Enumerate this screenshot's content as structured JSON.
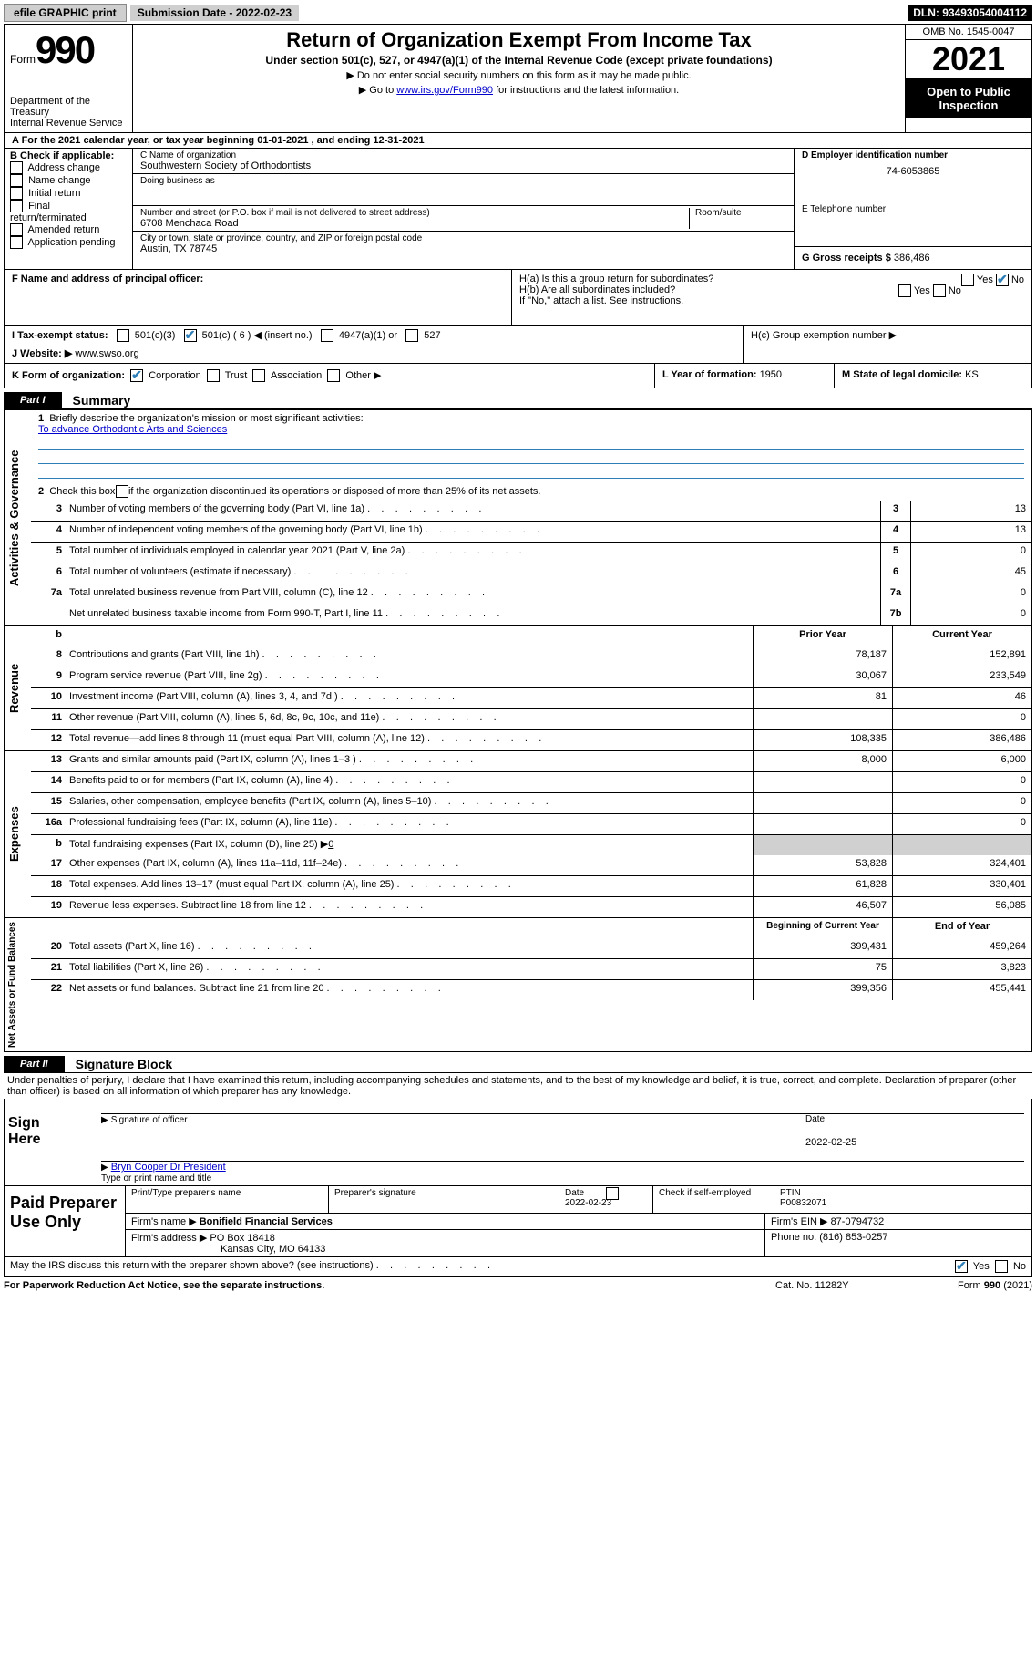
{
  "topBar": {
    "efile": "efile GRAPHIC print",
    "subLabel": "Submission Date - ",
    "subDate": "2022-02-23",
    "dln": "DLN: 93493054004112"
  },
  "header": {
    "formPrefix": "Form",
    "formNumber": "990",
    "dept": "Department of the Treasury",
    "irs": "Internal Revenue Service",
    "title": "Return of Organization Exempt From Income Tax",
    "sub": "Under section 501(c), 527, or 4947(a)(1) of the Internal Revenue Code (except private foundations)",
    "note1": "▶ Do not enter social security numbers on this form as it may be made public.",
    "note2_pre": "▶ Go to ",
    "note2_link": "www.irs.gov/Form990",
    "note2_post": " for instructions and the latest information.",
    "omb": "OMB No. 1545-0047",
    "year": "2021",
    "open": "Open to Public Inspection"
  },
  "lineA": {
    "text_a": "A For the 2021 calendar year, or tax year beginning ",
    "begin": "01-01-2021",
    "mid": "   , and ending ",
    "end": "12-31-2021"
  },
  "boxB": {
    "title": "B Check if applicable:",
    "items": [
      "Address change",
      "Name change",
      "Initial return",
      "Final return/terminated",
      "Amended return",
      "Application pending"
    ]
  },
  "boxC": {
    "labelName": "C Name of organization",
    "name": "Southwestern Society of Orthodontists",
    "dba": "Doing business as",
    "addrLabel": "Number and street (or P.O. box if mail is not delivered to street address)",
    "room": "Room/suite",
    "street": "6708 Menchaca Road",
    "cityLabel": "City or town, state or province, country, and ZIP or foreign postal code",
    "city": "Austin, TX  78745"
  },
  "boxD": {
    "label": "D Employer identification number",
    "value": "74-6053865"
  },
  "boxE": {
    "label": "E Telephone number",
    "value": ""
  },
  "boxG": {
    "label": "G Gross receipts $ ",
    "value": "386,486"
  },
  "boxF": "F  Name and address of principal officer:",
  "boxH": {
    "ha": "H(a)  Is this a group return for subordinates?",
    "haYes": "Yes",
    "haNo": "No",
    "hb": "H(b)  Are all subordinates included?",
    "hbNote": "If \"No,\" attach a list. See instructions.",
    "hc": "H(c)  Group exemption number ▶"
  },
  "rowI": {
    "label": "I   Tax-exempt status:",
    "opts": [
      "501(c)(3)",
      "501(c) ( 6 ) ◀ (insert no.)",
      "4947(a)(1) or",
      "527"
    ]
  },
  "rowJ": {
    "label": "J   Website: ▶ ",
    "value": "www.swso.org"
  },
  "rowK": {
    "label": "K Form of organization:",
    "opts": [
      "Corporation",
      "Trust",
      "Association",
      "Other ▶"
    ],
    "l_label": "L Year of formation: ",
    "l_value": "1950",
    "m_label": "M State of legal domicile: ",
    "m_value": "KS"
  },
  "part1": {
    "label": "Part I",
    "title": "Summary",
    "side1": "Activities & Governance",
    "q1_label": "1",
    "q1_text": "Briefly describe the organization's mission or most significant activities:",
    "q1_value": "To advance Orthodontic Arts and Sciences",
    "q2": "Check this box ▶        if the organization discontinued its operations or disposed of more than 25% of its net assets.",
    "rows_small": [
      {
        "n": "3",
        "t": "Number of voting members of the governing body (Part VI, line 1a)",
        "lbl": "3",
        "v": "13"
      },
      {
        "n": "4",
        "t": "Number of independent voting members of the governing body (Part VI, line 1b)",
        "lbl": "4",
        "v": "13"
      },
      {
        "n": "5",
        "t": "Total number of individuals employed in calendar year 2021 (Part V, line 2a)",
        "lbl": "5",
        "v": "0"
      },
      {
        "n": "6",
        "t": "Total number of volunteers (estimate if necessary)",
        "lbl": "6",
        "v": "45"
      },
      {
        "n": "7a",
        "t": "Total unrelated business revenue from Part VIII, column (C), line 12",
        "lbl": "7a",
        "v": "0"
      },
      {
        "n": "",
        "t": "Net unrelated business taxable income from Form 990-T, Part I, line 11",
        "lbl": "7b",
        "v": "0"
      }
    ],
    "side2": "Revenue",
    "col_prior": "Prior Year",
    "col_curr": "Current Year",
    "rev_rows": [
      {
        "n": "8",
        "t": "Contributions and grants (Part VIII, line 1h)",
        "p": "78,187",
        "c": "152,891"
      },
      {
        "n": "9",
        "t": "Program service revenue (Part VIII, line 2g)",
        "p": "30,067",
        "c": "233,549"
      },
      {
        "n": "10",
        "t": "Investment income (Part VIII, column (A), lines 3, 4, and 7d )",
        "p": "81",
        "c": "46"
      },
      {
        "n": "11",
        "t": "Other revenue (Part VIII, column (A), lines 5, 6d, 8c, 9c, 10c, and 11e)",
        "p": "",
        "c": "0"
      },
      {
        "n": "12",
        "t": "Total revenue—add lines 8 through 11 (must equal Part VIII, column (A), line 12)",
        "p": "108,335",
        "c": "386,486"
      }
    ],
    "side3": "Expenses",
    "exp_rows": [
      {
        "n": "13",
        "t": "Grants and similar amounts paid (Part IX, column (A), lines 1–3 )",
        "p": "8,000",
        "c": "6,000"
      },
      {
        "n": "14",
        "t": "Benefits paid to or for members (Part IX, column (A), line 4)",
        "p": "",
        "c": "0"
      },
      {
        "n": "15",
        "t": "Salaries, other compensation, employee benefits (Part IX, column (A), lines 5–10)",
        "p": "",
        "c": "0"
      },
      {
        "n": "16a",
        "t": "Professional fundraising fees (Part IX, column (A), line 11e)",
        "p": "",
        "c": "0"
      }
    ],
    "row16b_n": "b",
    "row16b_t": "Total fundraising expenses (Part IX, column (D), line 25) ▶",
    "row16b_v": "0",
    "exp_rows2": [
      {
        "n": "17",
        "t": "Other expenses (Part IX, column (A), lines 11a–11d, 11f–24e)",
        "p": "53,828",
        "c": "324,401"
      },
      {
        "n": "18",
        "t": "Total expenses. Add lines 13–17 (must equal Part IX, column (A), line 25)",
        "p": "61,828",
        "c": "330,401"
      },
      {
        "n": "19",
        "t": "Revenue less expenses. Subtract line 18 from line 12",
        "p": "46,507",
        "c": "56,085"
      }
    ],
    "side4": "Net Assets or Fund Balances",
    "col_begin": "Beginning of Current Year",
    "col_end": "End of Year",
    "net_rows": [
      {
        "n": "20",
        "t": "Total assets (Part X, line 16)",
        "p": "399,431",
        "c": "459,264"
      },
      {
        "n": "21",
        "t": "Total liabilities (Part X, line 26)",
        "p": "75",
        "c": "3,823"
      },
      {
        "n": "22",
        "t": "Net assets or fund balances. Subtract line 21 from line 20",
        "p": "399,356",
        "c": "455,441"
      }
    ]
  },
  "part2": {
    "label": "Part II",
    "title": "Signature Block",
    "pen": "Under penalties of perjury, I declare that I have examined this return, including accompanying schedules and statements, and to the best of my knowledge and belief, it is true, correct, and complete. Declaration of preparer (other than officer) is based on all information of which preparer has any knowledge."
  },
  "sign": {
    "here": "Sign Here",
    "sigOff": "Signature of officer",
    "date": "Date",
    "dateVal": "2022-02-25",
    "name": "Bryn Cooper Dr President",
    "nameLbl": "Type or print name and title"
  },
  "prep": {
    "label": "Paid Preparer Use Only",
    "h1": "Print/Type preparer's name",
    "h2": "Preparer's signature",
    "h3": "Date",
    "h3v": "2022-02-23",
    "h4": "Check        if self-employed",
    "h5": "PTIN",
    "h5v": "P00832071",
    "firmLbl": "Firm's name    ▶ ",
    "firm": "Bonifield Financial Services",
    "einLbl": "Firm's EIN ▶ ",
    "ein": "87-0794732",
    "addrLbl": "Firm's address ▶ ",
    "addr1": "PO Box 18418",
    "addr2": "Kansas City, MO  64133",
    "phoneLbl": "Phone no. ",
    "phone": "(816) 853-0257"
  },
  "footer": {
    "may": "May the IRS discuss this return with the preparer shown above? (see instructions)",
    "yes": "Yes",
    "no": "No",
    "pra": "For Paperwork Reduction Act Notice, see the separate instructions.",
    "cat": "Cat. No. 11282Y",
    "form": "Form 990 (2021)"
  }
}
